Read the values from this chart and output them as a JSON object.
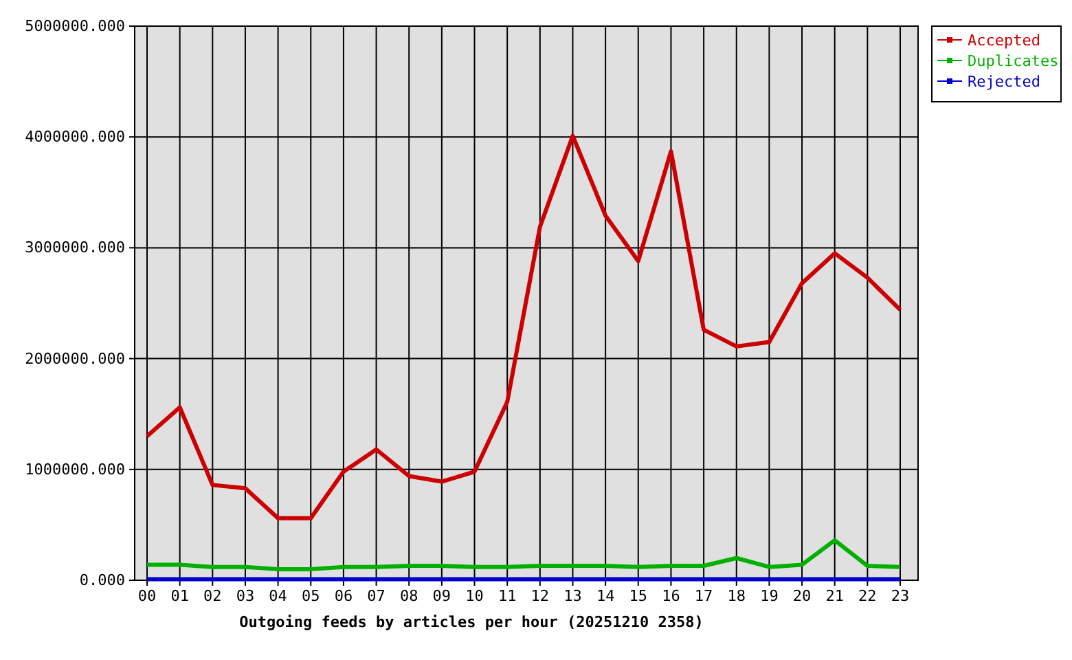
{
  "chart_data": {
    "type": "line",
    "xlabel": "Outgoing feeds by articles per hour (20251210 2358)",
    "categories": [
      "00",
      "01",
      "02",
      "03",
      "04",
      "05",
      "06",
      "07",
      "08",
      "09",
      "10",
      "11",
      "12",
      "13",
      "14",
      "15",
      "16",
      "17",
      "18",
      "19",
      "20",
      "21",
      "22",
      "23"
    ],
    "series": [
      {
        "name": "Accepted",
        "color": "#cc0000",
        "values": [
          1300000,
          1560000,
          860000,
          830000,
          560000,
          560000,
          980000,
          1180000,
          940000,
          890000,
          980000,
          1610000,
          3190000,
          4010000,
          3290000,
          2880000,
          3870000,
          2260000,
          2110000,
          2150000,
          2680000,
          2950000,
          2730000,
          2440000
        ]
      },
      {
        "name": "Duplicates",
        "color": "#00b000",
        "values": [
          140000,
          140000,
          120000,
          120000,
          100000,
          100000,
          120000,
          120000,
          130000,
          130000,
          120000,
          120000,
          130000,
          130000,
          130000,
          120000,
          130000,
          130000,
          200000,
          120000,
          140000,
          360000,
          130000,
          120000
        ]
      },
      {
        "name": "Rejected",
        "color": "#0000cc",
        "values": [
          10000,
          10000,
          10000,
          10000,
          10000,
          10000,
          10000,
          10000,
          10000,
          10000,
          10000,
          10000,
          10000,
          10000,
          10000,
          10000,
          10000,
          10000,
          10000,
          10000,
          10000,
          10000,
          10000,
          10000
        ]
      }
    ],
    "ylim": [
      0,
      5000000
    ],
    "yticks": [
      {
        "value": 0,
        "label": "0.000"
      },
      {
        "value": 1000000,
        "label": "1000000.000"
      },
      {
        "value": 2000000,
        "label": "2000000.000"
      },
      {
        "value": 3000000,
        "label": "3000000.000"
      },
      {
        "value": 4000000,
        "label": "4000000.000"
      },
      {
        "value": 5000000,
        "label": "5000000.000"
      }
    ],
    "grid": true,
    "legend": "top right",
    "marker": "none",
    "line_style": "solid"
  }
}
